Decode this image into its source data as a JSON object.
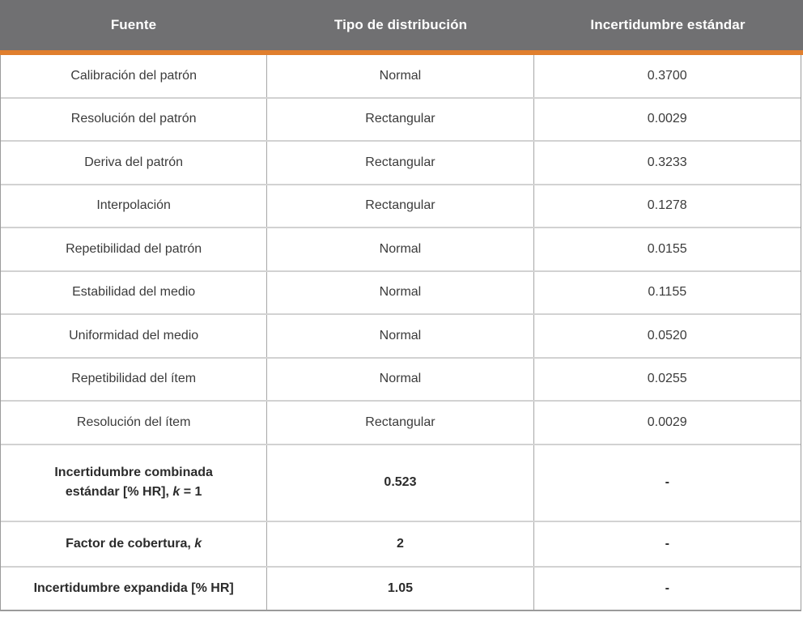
{
  "colors": {
    "header_bg": "#707072",
    "header_text": "#FFFFFF",
    "accent_orange": "#E07F2E",
    "row_divider": "#D2D2D2",
    "column_divider": "#A6A6A6",
    "outer_border": "#9B9B9B",
    "body_text": "#3B3B3B",
    "summary_text": "#2B2B2B"
  },
  "header": {
    "col_fuente": "Fuente",
    "col_tipo": "Tipo de distribución",
    "col_incertidumbre": "Incertidumbre estándar"
  },
  "rows": [
    {
      "fuente": "Calibración del patrón",
      "tipo": "Normal",
      "valor": "0.3700"
    },
    {
      "fuente": "Resolución del patrón",
      "tipo": "Rectangular",
      "valor": "0.0029"
    },
    {
      "fuente": "Deriva del patrón",
      "tipo": "Rectangular",
      "valor": "0.3233"
    },
    {
      "fuente": "Interpolación",
      "tipo": "Rectangular",
      "valor": "0.1278"
    },
    {
      "fuente": "Repetibilidad del patrón",
      "tipo": "Normal",
      "valor": "0.0155"
    },
    {
      "fuente": "Estabilidad del medio",
      "tipo": "Normal",
      "valor": "0.1155"
    },
    {
      "fuente": "Uniformidad del medio",
      "tipo": "Normal",
      "valor": "0.0520"
    },
    {
      "fuente": "Repetibilidad del ítem",
      "tipo": "Normal",
      "valor": "0.0255"
    },
    {
      "fuente": "Resolución del ítem",
      "tipo": "Rectangular",
      "valor": "0.0029"
    }
  ],
  "summary": {
    "combinada": {
      "line1": "Incertidumbre combinada",
      "line2_pre": "estándar [% HR], ",
      "line2_italic": "k",
      "line2_post": " = 1",
      "valor": "0.523",
      "dash": "-"
    },
    "cobertura": {
      "label_pre": "Factor de cobertura, ",
      "label_italic": "k",
      "valor": "2",
      "dash": "-"
    },
    "expandida": {
      "label": "Incertidumbre expandida [% HR]",
      "valor": "1.05",
      "dash": "-"
    }
  }
}
